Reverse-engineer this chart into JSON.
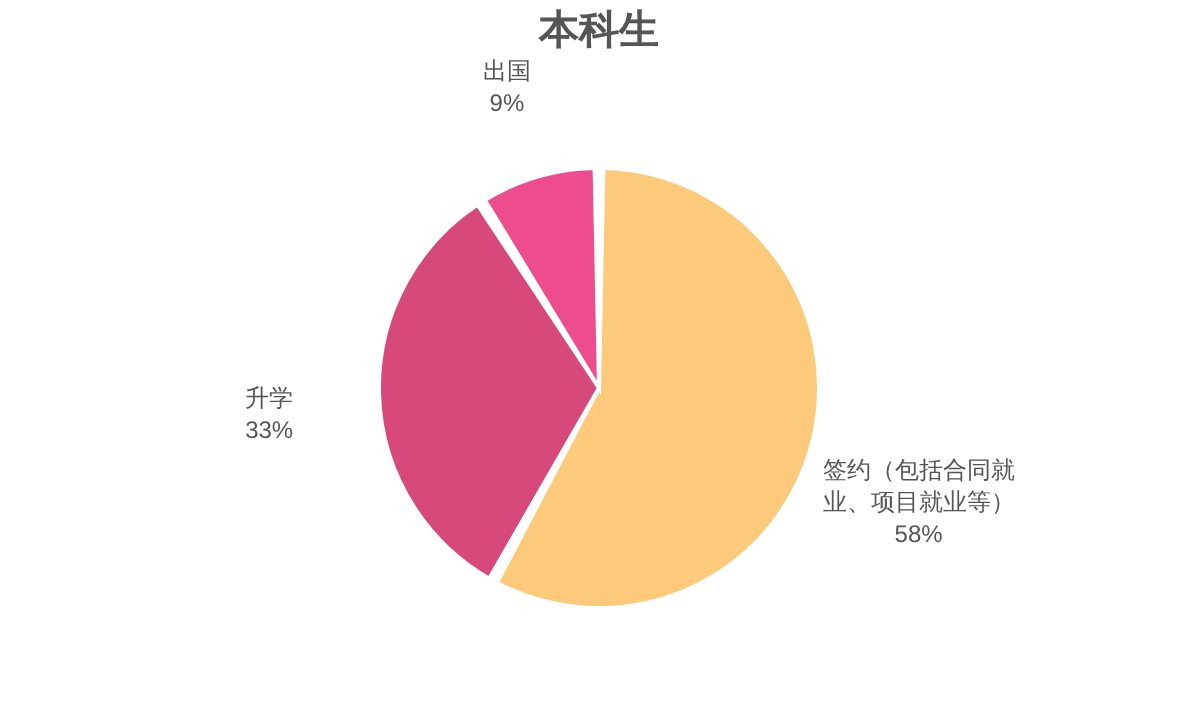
{
  "chart_data": {
    "type": "pie",
    "title": "本科生",
    "categories": [
      "签约（包括合同就业、项目就业等）",
      "升学",
      "出国"
    ],
    "values": [
      58,
      33,
      9
    ],
    "colors": [
      "#fdc97b",
      "#d6497a",
      "#ee4d8d"
    ],
    "value_labels": [
      "58%",
      "33%",
      "9%"
    ],
    "legend": false
  }
}
